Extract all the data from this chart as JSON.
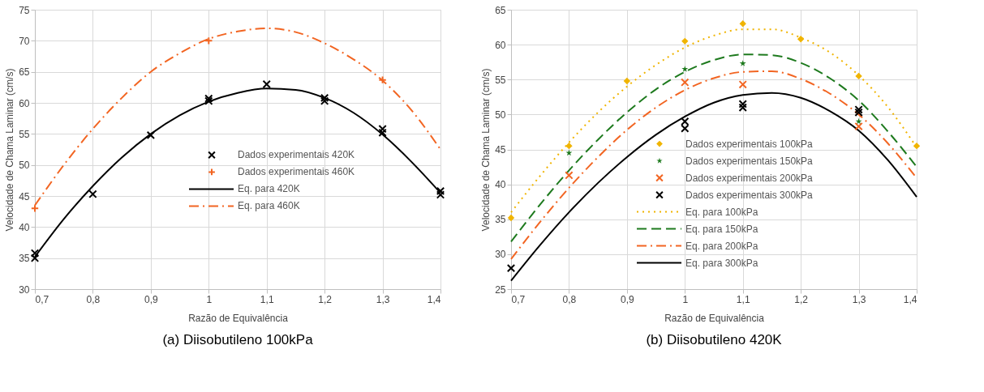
{
  "chart_data": [
    {
      "type": "scatter",
      "title": "(a) Diisobutileno 100kPa",
      "xlabel": "Razão de Equivalência",
      "ylabel": "Velocidade de Chama Laminar (cm/s)",
      "xlim": [
        0.7,
        1.4
      ],
      "xticks": [
        {
          "value": 0.7,
          "label": "0,7"
        },
        {
          "value": 0.8,
          "label": "0,8"
        },
        {
          "value": 0.9,
          "label": "0,9"
        },
        {
          "value": 1,
          "label": "1"
        },
        {
          "value": 1.1,
          "label": "1,1"
        },
        {
          "value": 1.2,
          "label": "1,2"
        },
        {
          "value": 1.3,
          "label": "1,3"
        },
        {
          "value": 1.4,
          "label": "1,4"
        }
      ],
      "ylim": [
        30,
        75
      ],
      "yticks": [
        30,
        35,
        40,
        45,
        50,
        55,
        60,
        65,
        70,
        75
      ],
      "grid": true,
      "legend": "center right",
      "series": [
        {
          "name": "Dados experimentais 420K",
          "marker": "cross",
          "color": "#000000",
          "x": [
            0.7,
            0.7,
            0.8,
            0.9,
            1.0,
            1.0,
            1.1,
            1.2,
            1.2,
            1.3,
            1.3,
            1.4,
            1.4
          ],
          "values": [
            35.8,
            35.0,
            45.3,
            54.8,
            60.7,
            60.3,
            63.0,
            60.8,
            60.3,
            55.8,
            55.2,
            45.8,
            45.2
          ]
        },
        {
          "name": "Dados experimentais 460K",
          "marker": "plus",
          "color": "#f26522",
          "x": [
            0.7,
            1.0,
            1.3
          ],
          "values": [
            43.0,
            70.0,
            63.7
          ]
        },
        {
          "name": "Eq. para 420K",
          "type": "line",
          "line_style": "solid",
          "color": "#000000",
          "x": [
            0.7,
            0.75,
            0.8,
            0.85,
            0.9,
            0.95,
            1.0,
            1.05,
            1.1,
            1.15,
            1.2,
            1.25,
            1.3,
            1.35,
            1.4
          ],
          "values": [
            35.2,
            41.3,
            46.6,
            51.2,
            55.0,
            58.0,
            60.2,
            61.6,
            62.3,
            62.1,
            60.8,
            58.4,
            54.9,
            50.5,
            45.5
          ]
        },
        {
          "name": "Eq. para 460K",
          "type": "line",
          "line_style": "dashdot",
          "color": "#f26522",
          "x": [
            0.7,
            0.75,
            0.8,
            0.85,
            0.9,
            0.95,
            1.0,
            1.05,
            1.1,
            1.15,
            1.2,
            1.25,
            1.3,
            1.35,
            1.4
          ],
          "values": [
            43.5,
            50.0,
            55.8,
            60.8,
            65.0,
            68.0,
            70.3,
            71.5,
            72.0,
            71.4,
            69.6,
            67.0,
            63.6,
            58.8,
            52.5
          ]
        }
      ]
    },
    {
      "type": "scatter",
      "title": "(b) Diisobutileno 420K",
      "xlabel": "Razão de Equivalência",
      "ylabel": "Velocidade de Chama Laminar (cm/s)",
      "xlim": [
        0.7,
        1.4
      ],
      "xticks": [
        {
          "value": 0.7,
          "label": "0,7"
        },
        {
          "value": 0.8,
          "label": "0,8"
        },
        {
          "value": 0.9,
          "label": "0,9"
        },
        {
          "value": 1,
          "label": "1"
        },
        {
          "value": 1.1,
          "label": "1,1"
        },
        {
          "value": 1.2,
          "label": "1,2"
        },
        {
          "value": 1.3,
          "label": "1,3"
        },
        {
          "value": 1.4,
          "label": "1,4"
        }
      ],
      "ylim": [
        25,
        65
      ],
      "yticks": [
        25,
        30,
        35,
        40,
        45,
        50,
        55,
        60,
        65
      ],
      "grid": true,
      "legend": "bottom right",
      "series": [
        {
          "name": "Dados experimentais 100kPa",
          "marker": "diamond",
          "color": "#f0b400",
          "x": [
            0.7,
            0.8,
            0.9,
            1.0,
            1.1,
            1.2,
            1.3,
            1.4
          ],
          "values": [
            35.2,
            45.5,
            54.8,
            60.5,
            63.0,
            60.8,
            55.5,
            45.5
          ]
        },
        {
          "name": "Dados experimentais 150kPa",
          "marker": "star",
          "color": "#1e7a1e",
          "x": [
            0.8,
            1.0,
            1.1,
            1.3
          ],
          "values": [
            44.5,
            56.5,
            57.3,
            49.0
          ]
        },
        {
          "name": "Dados experimentais 200kPa",
          "marker": "cross",
          "color": "#f26522",
          "x": [
            0.8,
            1.0,
            1.1,
            1.3
          ],
          "values": [
            41.3,
            54.6,
            54.3,
            48.3
          ]
        },
        {
          "name": "Dados experimentais 300kPa",
          "marker": "cross",
          "color": "#000000",
          "x": [
            0.7,
            1.0,
            1.0,
            1.1,
            1.1,
            1.3,
            1.3
          ],
          "values": [
            28.0,
            49.0,
            48.0,
            51.5,
            51.0,
            50.7,
            50.3
          ]
        },
        {
          "name": "Eq. para 100kPa",
          "type": "line",
          "line_style": "dotted",
          "color": "#f0b400",
          "x": [
            0.7,
            0.75,
            0.8,
            0.85,
            0.9,
            0.95,
            1.0,
            1.05,
            1.1,
            1.15,
            1.2,
            1.25,
            1.3,
            1.35,
            1.4
          ],
          "values": [
            36.0,
            41.2,
            46.0,
            50.3,
            54.0,
            57.1,
            59.6,
            61.3,
            62.2,
            62.2,
            61.0,
            58.9,
            55.6,
            51.1,
            45.3
          ]
        },
        {
          "name": "Eq. para 150kPa",
          "type": "line",
          "line_style": "dashed",
          "color": "#1e7a1e",
          "x": [
            0.7,
            0.75,
            0.8,
            0.85,
            0.9,
            0.95,
            1.0,
            1.05,
            1.1,
            1.15,
            1.2,
            1.25,
            1.3,
            1.35,
            1.4
          ],
          "values": [
            31.8,
            37.1,
            42.0,
            46.4,
            50.3,
            53.6,
            56.1,
            57.8,
            58.6,
            58.5,
            57.4,
            55.2,
            52.0,
            47.6,
            42.5
          ]
        },
        {
          "name": "Eq. para 200kPa",
          "type": "line",
          "line_style": "dashdot",
          "color": "#f26522",
          "x": [
            0.7,
            0.75,
            0.8,
            0.85,
            0.9,
            0.95,
            1.0,
            1.05,
            1.1,
            1.15,
            1.2,
            1.25,
            1.3,
            1.35,
            1.4
          ],
          "values": [
            29.3,
            34.6,
            39.5,
            43.9,
            47.8,
            51.0,
            53.5,
            55.2,
            56.1,
            56.2,
            55.1,
            53.0,
            50.0,
            45.9,
            40.9
          ]
        },
        {
          "name": "Eq. para 300kPa",
          "type": "line",
          "line_style": "solid",
          "color": "#000000",
          "x": [
            0.7,
            0.75,
            0.8,
            0.85,
            0.9,
            0.95,
            1.0,
            1.05,
            1.1,
            1.15,
            1.2,
            1.25,
            1.3,
            1.35,
            1.4
          ],
          "values": [
            26.2,
            31.3,
            36.0,
            40.2,
            43.9,
            47.1,
            49.7,
            51.7,
            52.8,
            53.1,
            52.4,
            50.5,
            47.7,
            43.5,
            38.2
          ]
        }
      ]
    }
  ]
}
